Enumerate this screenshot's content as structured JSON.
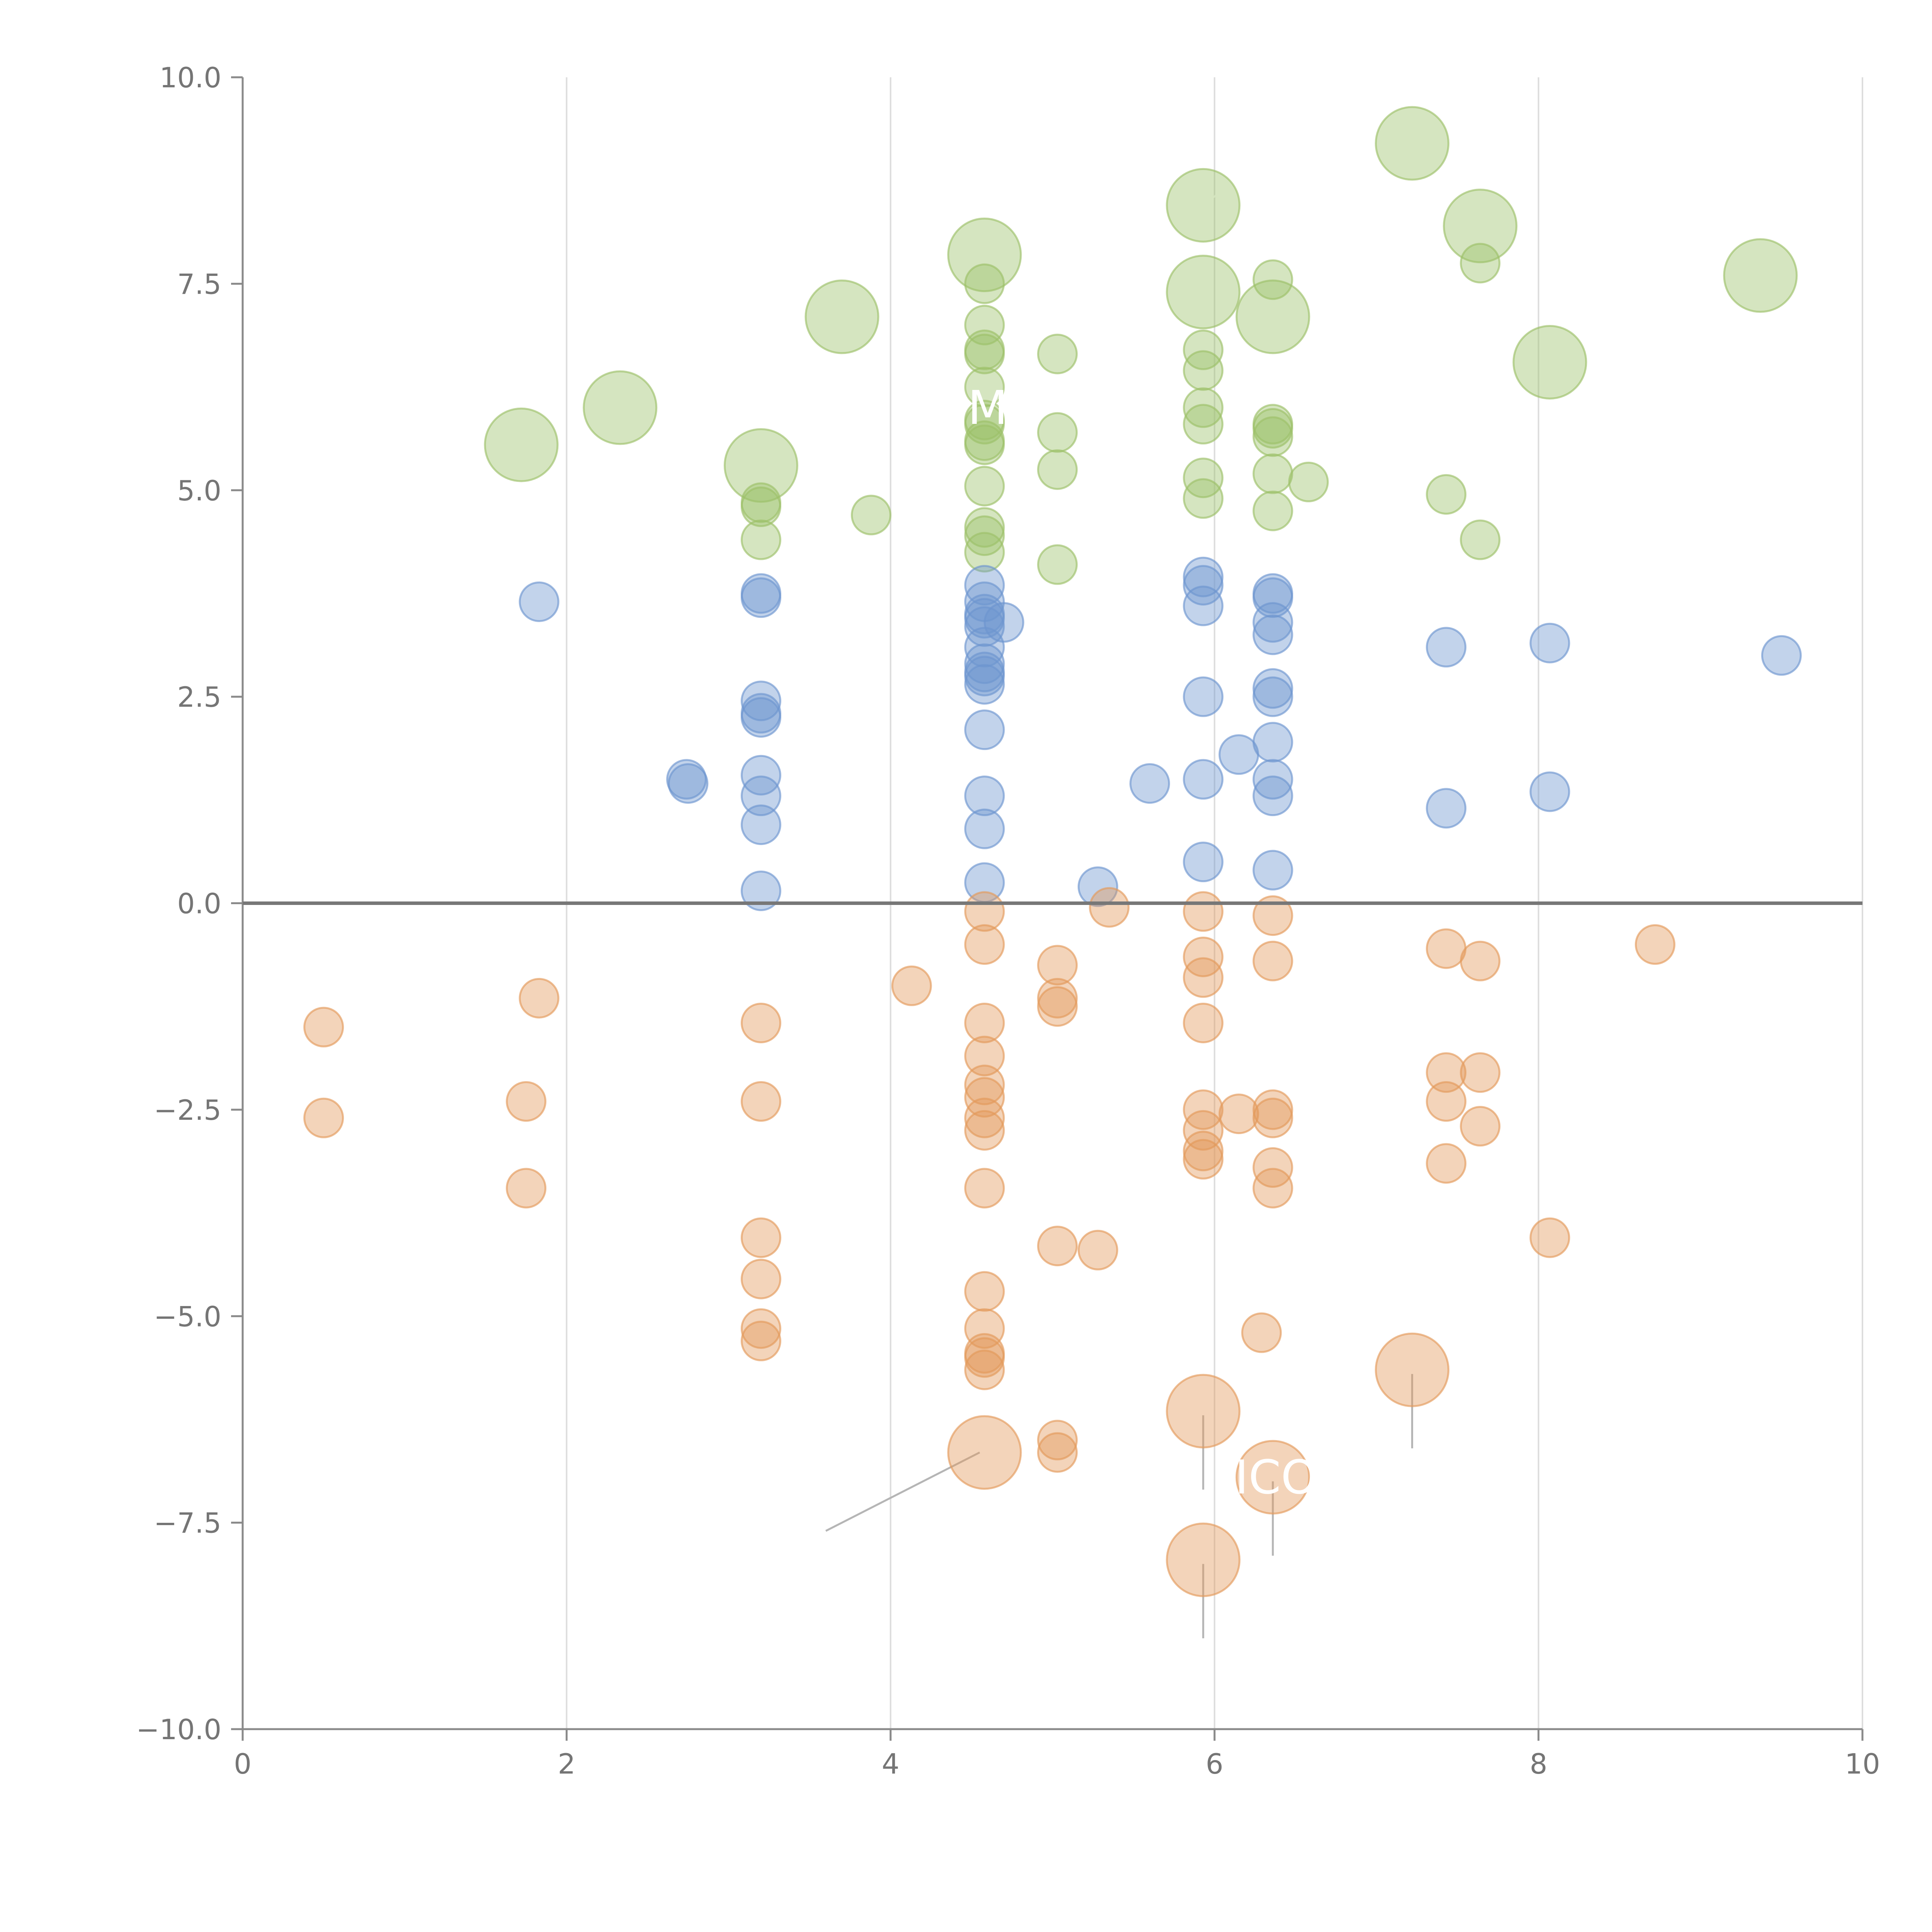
{
  "chart_data": {
    "type": "scatter",
    "title": "",
    "xlabel": "",
    "ylabel": "",
    "xlim": [
      0,
      10
    ],
    "ylim": [
      -10,
      10
    ],
    "xticks": [
      0,
      2,
      4,
      6,
      8,
      10
    ],
    "yticks": [
      10.0,
      7.5,
      5.0,
      2.5,
      0.0,
      -2.5,
      -5.0,
      -7.5,
      -10.0
    ],
    "xtick_labels": [
      "0",
      "2",
      "4",
      "6",
      "8",
      "10"
    ],
    "ytick_labels": [
      "10.0",
      "7.5",
      "5.0",
      "2.5",
      "0.0",
      "−2.5",
      "−5.0",
      "−7.5",
      "−10.0"
    ],
    "grid_x": true,
    "grid_y": false,
    "zero_line": 0,
    "marker_opacity": 0.42,
    "series": [
      {
        "name": "green",
        "color": "#9CC069",
        "points": [
          {
            "x": 1.72,
            "y": 5.55,
            "size": "large"
          },
          {
            "x": 2.33,
            "y": 6.0,
            "size": "large"
          },
          {
            "x": 3.2,
            "y": 5.3,
            "size": "large"
          },
          {
            "x": 3.7,
            "y": 7.1,
            "size": "large"
          },
          {
            "x": 4.58,
            "y": 7.85,
            "size": "large"
          },
          {
            "x": 5.93,
            "y": 8.45,
            "size": "large"
          },
          {
            "x": 5.93,
            "y": 7.4,
            "size": "large"
          },
          {
            "x": 6.36,
            "y": 7.1,
            "size": "large"
          },
          {
            "x": 7.22,
            "y": 9.2,
            "size": "large"
          },
          {
            "x": 7.64,
            "y": 8.2,
            "size": "large"
          },
          {
            "x": 8.07,
            "y": 6.55,
            "size": "large"
          },
          {
            "x": 9.37,
            "y": 7.6,
            "size": "large"
          },
          {
            "x": 3.2,
            "y": 4.85,
            "size": "small"
          },
          {
            "x": 3.2,
            "y": 4.8,
            "size": "small"
          },
          {
            "x": 3.2,
            "y": 4.4,
            "size": "small"
          },
          {
            "x": 3.88,
            "y": 4.7,
            "size": "small"
          },
          {
            "x": 4.58,
            "y": 7.5,
            "size": "small"
          },
          {
            "x": 4.58,
            "y": 7.0,
            "size": "small"
          },
          {
            "x": 4.58,
            "y": 6.7,
            "size": "small"
          },
          {
            "x": 4.58,
            "y": 6.65,
            "size": "small"
          },
          {
            "x": 4.58,
            "y": 6.25,
            "size": "small"
          },
          {
            "x": 4.58,
            "y": 5.85,
            "size": "small"
          },
          {
            "x": 4.58,
            "y": 5.8,
            "size": "small"
          },
          {
            "x": 4.58,
            "y": 5.6,
            "size": "small"
          },
          {
            "x": 4.58,
            "y": 5.55,
            "size": "small"
          },
          {
            "x": 4.58,
            "y": 5.05,
            "size": "small"
          },
          {
            "x": 4.58,
            "y": 4.55,
            "size": "small"
          },
          {
            "x": 4.58,
            "y": 4.45,
            "size": "small"
          },
          {
            "x": 4.58,
            "y": 4.25,
            "size": "small"
          },
          {
            "x": 5.03,
            "y": 6.65,
            "size": "small"
          },
          {
            "x": 5.03,
            "y": 5.7,
            "size": "small"
          },
          {
            "x": 5.03,
            "y": 5.25,
            "size": "small"
          },
          {
            "x": 5.03,
            "y": 4.1,
            "size": "small"
          },
          {
            "x": 5.93,
            "y": 6.7,
            "size": "small"
          },
          {
            "x": 5.93,
            "y": 6.45,
            "size": "small"
          },
          {
            "x": 5.93,
            "y": 6.0,
            "size": "small"
          },
          {
            "x": 5.93,
            "y": 5.8,
            "size": "small"
          },
          {
            "x": 5.93,
            "y": 5.15,
            "size": "small"
          },
          {
            "x": 5.93,
            "y": 4.9,
            "size": "small"
          },
          {
            "x": 6.36,
            "y": 7.55,
            "size": "small"
          },
          {
            "x": 6.36,
            "y": 5.8,
            "size": "small"
          },
          {
            "x": 6.36,
            "y": 5.75,
            "size": "small"
          },
          {
            "x": 6.36,
            "y": 5.65,
            "size": "small"
          },
          {
            "x": 6.36,
            "y": 5.2,
            "size": "small"
          },
          {
            "x": 6.36,
            "y": 4.75,
            "size": "small"
          },
          {
            "x": 6.58,
            "y": 5.1,
            "size": "small"
          },
          {
            "x": 7.43,
            "y": 4.95,
            "size": "small"
          },
          {
            "x": 7.64,
            "y": 7.75,
            "size": "small"
          },
          {
            "x": 7.64,
            "y": 4.4,
            "size": "small"
          }
        ]
      },
      {
        "name": "blue",
        "color": "#6D95CF",
        "points": [
          {
            "x": 1.83,
            "y": 3.65
          },
          {
            "x": 2.74,
            "y": 1.5
          },
          {
            "x": 2.75,
            "y": 1.45
          },
          {
            "x": 3.2,
            "y": 3.75
          },
          {
            "x": 3.2,
            "y": 3.7
          },
          {
            "x": 3.2,
            "y": 2.45
          },
          {
            "x": 3.2,
            "y": 2.3
          },
          {
            "x": 3.2,
            "y": 2.25
          },
          {
            "x": 3.2,
            "y": 1.55
          },
          {
            "x": 3.2,
            "y": 1.3
          },
          {
            "x": 3.2,
            "y": 0.95
          },
          {
            "x": 3.2,
            "y": 0.15
          },
          {
            "x": 4.58,
            "y": 3.85
          },
          {
            "x": 4.58,
            "y": 3.65
          },
          {
            "x": 4.58,
            "y": 3.5
          },
          {
            "x": 4.58,
            "y": 3.45
          },
          {
            "x": 4.58,
            "y": 3.35
          },
          {
            "x": 4.58,
            "y": 3.1
          },
          {
            "x": 4.58,
            "y": 2.9
          },
          {
            "x": 4.58,
            "y": 2.8
          },
          {
            "x": 4.58,
            "y": 2.75
          },
          {
            "x": 4.58,
            "y": 2.65
          },
          {
            "x": 4.58,
            "y": 2.1
          },
          {
            "x": 4.58,
            "y": 1.3
          },
          {
            "x": 4.58,
            "y": 0.9
          },
          {
            "x": 4.58,
            "y": 0.25
          },
          {
            "x": 4.7,
            "y": 3.4
          },
          {
            "x": 5.28,
            "y": 0.2
          },
          {
            "x": 5.6,
            "y": 1.45
          },
          {
            "x": 5.93,
            "y": 3.95
          },
          {
            "x": 5.93,
            "y": 3.85
          },
          {
            "x": 5.93,
            "y": 3.6
          },
          {
            "x": 5.93,
            "y": 2.5
          },
          {
            "x": 5.93,
            "y": 1.5
          },
          {
            "x": 5.93,
            "y": 0.5
          },
          {
            "x": 6.15,
            "y": 1.8
          },
          {
            "x": 6.36,
            "y": 3.75
          },
          {
            "x": 6.36,
            "y": 3.7
          },
          {
            "x": 6.36,
            "y": 3.4
          },
          {
            "x": 6.36,
            "y": 3.25
          },
          {
            "x": 6.36,
            "y": 2.6
          },
          {
            "x": 6.36,
            "y": 2.5
          },
          {
            "x": 6.36,
            "y": 1.95
          },
          {
            "x": 6.36,
            "y": 1.5
          },
          {
            "x": 6.36,
            "y": 1.3
          },
          {
            "x": 6.36,
            "y": 0.4
          },
          {
            "x": 7.43,
            "y": 3.1
          },
          {
            "x": 7.43,
            "y": 1.15
          },
          {
            "x": 8.07,
            "y": 3.15
          },
          {
            "x": 8.07,
            "y": 1.35
          },
          {
            "x": 9.5,
            "y": 3.0
          }
        ]
      },
      {
        "name": "orange",
        "color": "#E3995B",
        "points": [
          {
            "x": 0.5,
            "y": -1.5
          },
          {
            "x": 0.5,
            "y": -2.6
          },
          {
            "x": 1.75,
            "y": -2.4
          },
          {
            "x": 1.75,
            "y": -3.45
          },
          {
            "x": 1.83,
            "y": -1.15
          },
          {
            "x": 3.2,
            "y": -1.45
          },
          {
            "x": 3.2,
            "y": -2.4
          },
          {
            "x": 3.2,
            "y": -4.05
          },
          {
            "x": 3.2,
            "y": -4.55
          },
          {
            "x": 3.2,
            "y": -5.15
          },
          {
            "x": 3.2,
            "y": -5.3
          },
          {
            "x": 4.13,
            "y": -1.0
          },
          {
            "x": 4.58,
            "y": -0.1
          },
          {
            "x": 4.58,
            "y": -0.5
          },
          {
            "x": 4.58,
            "y": -1.45
          },
          {
            "x": 4.58,
            "y": -1.85
          },
          {
            "x": 4.58,
            "y": -2.2
          },
          {
            "x": 4.58,
            "y": -2.35
          },
          {
            "x": 4.58,
            "y": -2.6
          },
          {
            "x": 4.58,
            "y": -2.75
          },
          {
            "x": 4.58,
            "y": -3.45
          },
          {
            "x": 4.58,
            "y": -4.7
          },
          {
            "x": 4.58,
            "y": -5.15
          },
          {
            "x": 4.58,
            "y": -5.45
          },
          {
            "x": 4.58,
            "y": -5.5
          },
          {
            "x": 4.58,
            "y": -5.65
          },
          {
            "x": 5.03,
            "y": -0.75
          },
          {
            "x": 5.03,
            "y": -1.15
          },
          {
            "x": 5.03,
            "y": -1.25
          },
          {
            "x": 5.03,
            "y": -4.15
          },
          {
            "x": 5.03,
            "y": -6.5
          },
          {
            "x": 5.03,
            "y": -6.65
          },
          {
            "x": 5.28,
            "y": -4.2
          },
          {
            "x": 5.35,
            "y": -0.05
          },
          {
            "x": 5.93,
            "y": -0.1
          },
          {
            "x": 5.93,
            "y": -0.65
          },
          {
            "x": 5.93,
            "y": -0.9
          },
          {
            "x": 5.93,
            "y": -1.45
          },
          {
            "x": 5.93,
            "y": -2.5
          },
          {
            "x": 5.93,
            "y": -2.75
          },
          {
            "x": 5.93,
            "y": -3.0
          },
          {
            "x": 5.93,
            "y": -3.1
          },
          {
            "x": 6.15,
            "y": -2.55
          },
          {
            "x": 6.29,
            "y": -5.2
          },
          {
            "x": 6.36,
            "y": -0.15
          },
          {
            "x": 6.36,
            "y": -0.7
          },
          {
            "x": 6.36,
            "y": -2.5
          },
          {
            "x": 6.36,
            "y": -2.6
          },
          {
            "x": 6.36,
            "y": -3.2
          },
          {
            "x": 6.36,
            "y": -3.45
          },
          {
            "x": 7.43,
            "y": -0.55
          },
          {
            "x": 7.43,
            "y": -2.05
          },
          {
            "x": 7.43,
            "y": -2.4
          },
          {
            "x": 7.43,
            "y": -3.15
          },
          {
            "x": 7.64,
            "y": -0.7
          },
          {
            "x": 7.64,
            "y": -2.05
          },
          {
            "x": 7.64,
            "y": -2.7
          },
          {
            "x": 8.07,
            "y": -4.05
          },
          {
            "x": 8.72,
            "y": -0.5
          },
          {
            "x": 4.58,
            "y": -6.65,
            "size": "large"
          },
          {
            "x": 5.93,
            "y": -6.15,
            "size": "large"
          },
          {
            "x": 6.36,
            "y": -6.95,
            "size": "large"
          },
          {
            "x": 5.93,
            "y": -7.95,
            "size": "large"
          },
          {
            "x": 7.22,
            "y": -5.65,
            "size": "large"
          }
        ]
      }
    ],
    "annotations": [
      {
        "text": "M",
        "x": 4.6,
        "y": 6.0
      },
      {
        "text": "ICO",
        "x": 6.38,
        "y": -6.95
      }
    ],
    "leader_lines": [
      {
        "x1": 4.55,
        "y1": -6.65,
        "x2": 3.6,
        "y2": -7.6
      },
      {
        "x1": 5.93,
        "y1": -6.2,
        "x2": 5.93,
        "y2": -7.1
      },
      {
        "x1": 6.36,
        "y1": -7.0,
        "x2": 6.36,
        "y2": -7.9
      },
      {
        "x1": 5.93,
        "y1": -8.0,
        "x2": 5.93,
        "y2": -8.9
      },
      {
        "x1": 7.22,
        "y1": -5.7,
        "x2": 7.22,
        "y2": -6.6
      },
      {
        "x1": 2.33,
        "y1": 6.05,
        "x2": 2.22,
        "y2": 6.3
      },
      {
        "x1": 3.25,
        "y1": 5.35,
        "x2": 3.45,
        "y2": 5.45
      },
      {
        "x1": 3.72,
        "y1": 7.2,
        "x2": 3.65,
        "y2": 7.5
      },
      {
        "x1": 4.62,
        "y1": 7.9,
        "x2": 4.72,
        "y2": 8.1
      },
      {
        "x1": 5.96,
        "y1": 8.5,
        "x2": 6.1,
        "y2": 8.7
      },
      {
        "x1": 5.93,
        "y1": 7.35,
        "x2": 5.9,
        "y2": 7.05
      },
      {
        "x1": 6.38,
        "y1": 7.05,
        "x2": 6.44,
        "y2": 6.7
      },
      {
        "x1": 7.25,
        "y1": 9.25,
        "x2": 7.4,
        "y2": 9.3
      },
      {
        "x1": 7.67,
        "y1": 8.25,
        "x2": 7.85,
        "y2": 8.35
      },
      {
        "x1": 9.38,
        "y1": 7.65,
        "x2": 9.39,
        "y2": 7.95
      }
    ]
  }
}
